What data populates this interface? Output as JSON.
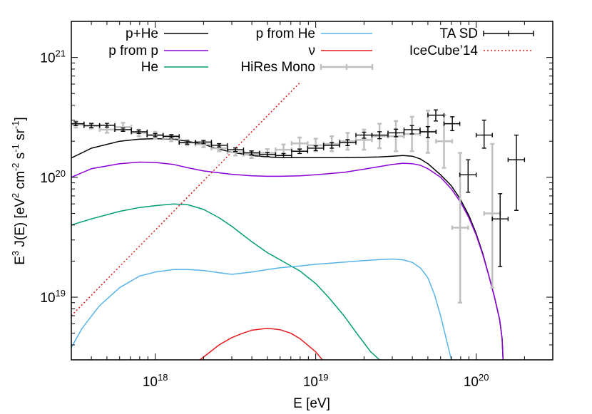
{
  "chart_data": {
    "type": "line",
    "xlabel": "E  [eV]",
    "ylabel": "E3 J(E)  [eV2 cm-2 s-1 sr-1]",
    "ylabel_parts": [
      "E",
      "3",
      " J(E)  [eV",
      "2",
      " cm",
      "-2",
      " s",
      "-1",
      " sr",
      "-1",
      "]"
    ],
    "x_scale": "log",
    "y_scale": "log",
    "xlim": [
      3e+17,
      3e+20
    ],
    "ylim": [
      3e+18,
      2e+21
    ],
    "x_ticks": [
      {
        "value": 1e+18,
        "base": "10",
        "exp": "18"
      },
      {
        "value": 1e+19,
        "base": "10",
        "exp": "19"
      },
      {
        "value": 1e+20,
        "base": "10",
        "exp": "20"
      }
    ],
    "y_ticks": [
      {
        "value": 1e+19,
        "base": "10",
        "exp": "19"
      },
      {
        "value": 1e+20,
        "base": "10",
        "exp": "20"
      },
      {
        "value": 1e+21,
        "base": "10",
        "exp": "21"
      }
    ],
    "grid": false,
    "legend_position": "top",
    "series": [
      {
        "name": "p+He",
        "color": "#000000",
        "style": "solid",
        "x": [
          3e+17,
          4e+17,
          6e+17,
          8e+17,
          1e+18,
          1.3e+18,
          1.6e+18,
          2e+18,
          2.5e+18,
          3e+18,
          4e+18,
          5e+18,
          6e+18,
          8e+18,
          1e+19,
          1.5e+19,
          2e+19,
          2.5e+19,
          3e+19,
          3.5e+19,
          4e+19,
          4.5e+19,
          5e+19,
          6e+19,
          7e+19,
          8e+19,
          9e+19,
          1e+20,
          1.1e+20,
          1.2e+20,
          1.3e+20,
          1.4e+20,
          1.45e+20,
          1.47e+20
        ],
        "y": [
          1.45e+20,
          1.75e+20,
          2e+20,
          2.08e+20,
          2.1e+20,
          2.08e+20,
          2e+20,
          1.88e+20,
          1.72e+20,
          1.62e+20,
          1.52e+20,
          1.48e+20,
          1.46e+20,
          1.46e+20,
          1.46e+20,
          1.46e+20,
          1.47e+20,
          1.48e+20,
          1.5e+20,
          1.52e+20,
          1.5e+20,
          1.42e+20,
          1.3e+20,
          1.05e+20,
          8.5e+19,
          6.5e+19,
          4.8e+19,
          3.4e+19,
          2.3e+19,
          1.5e+19,
          1e+19,
          6.5e+18,
          4.5e+18,
          3e+18
        ]
      },
      {
        "name": "p from p",
        "color": "#8b00d6",
        "style": "solid",
        "x": [
          3e+17,
          4e+17,
          6e+17,
          8e+17,
          1e+18,
          1.3e+18,
          1.6e+18,
          2e+18,
          3e+18,
          4e+18,
          5e+18,
          6e+18,
          8e+18,
          1e+19,
          1.5e+19,
          2e+19,
          2.5e+19,
          3e+19,
          3.5e+19,
          4e+19,
          4.5e+19,
          5e+19,
          6e+19,
          7e+19,
          8e+19,
          9e+19,
          1e+20,
          1.1e+20,
          1.2e+20,
          1.3e+20,
          1.4e+20,
          1.45e+20,
          1.47e+20
        ],
        "y": [
          1e+20,
          1.18e+20,
          1.3e+20,
          1.34e+20,
          1.33e+20,
          1.28e+20,
          1.2e+20,
          1.13e+20,
          1.06e+20,
          1.03e+20,
          1.02e+20,
          1.02e+20,
          1.03e+20,
          1.05e+20,
          1.1e+20,
          1.17e+20,
          1.23e+20,
          1.28e+20,
          1.31e+20,
          1.3e+20,
          1.26e+20,
          1.18e+20,
          1e+20,
          8e+19,
          6.2e+19,
          4.6e+19,
          3.3e+19,
          2.25e+19,
          1.5e+19,
          1e+19,
          6.5e+18,
          4.5e+18,
          3e+18
        ]
      },
      {
        "name": "He",
        "color": "#009e73",
        "style": "solid",
        "x": [
          3e+17,
          4e+17,
          6e+17,
          8e+17,
          1e+18,
          1.3e+18,
          1.6e+18,
          2e+18,
          2.5e+18,
          3e+18,
          4e+18,
          5e+18,
          6e+18,
          8e+18,
          1e+19,
          1.2e+19,
          1.5e+19,
          1.8e+19,
          2.2e+19,
          2.5e+19
        ],
        "y": [
          4e+19,
          4.5e+19,
          5.2e+19,
          5.6e+19,
          5.8e+19,
          6e+19,
          5.9e+19,
          5.4e+19,
          4.6e+19,
          3.9e+19,
          2.9e+19,
          2.35e+19,
          2.05e+19,
          1.65e+19,
          1.3e+19,
          1e+19,
          7e+18,
          5e+18,
          3.5e+18,
          3e+18
        ]
      },
      {
        "name": "p from He",
        "color": "#56b4e9",
        "style": "solid",
        "x": [
          3e+17,
          3.5e+17,
          4.5e+17,
          6e+17,
          8e+17,
          1e+18,
          1.3e+18,
          1.6e+18,
          2e+18,
          2.5e+18,
          3e+18,
          4e+18,
          5e+18,
          6e+18,
          8e+18,
          1e+19,
          1.5e+19,
          2e+19,
          2.5e+19,
          3e+19,
          3.5e+19,
          4e+19,
          4.5e+19,
          5e+19,
          5.5e+19,
          6e+19,
          6.5e+19,
          7e+19
        ],
        "y": [
          3.8e+18,
          5.5e+18,
          8.5e+18,
          1.2e+19,
          1.5e+19,
          1.62e+19,
          1.7e+19,
          1.7e+19,
          1.67e+19,
          1.6e+19,
          1.55e+19,
          1.62e+19,
          1.7e+19,
          1.76e+19,
          1.82e+19,
          1.88e+19,
          1.96e+19,
          2.02e+19,
          2.06e+19,
          2.08e+19,
          2.05e+19,
          1.95e+19,
          1.75e+19,
          1.45e+19,
          1.05e+19,
          7e+18,
          4.5e+18,
          3e+18
        ]
      },
      {
        "name": "ν",
        "color": "#e41a1c",
        "style": "solid",
        "x": [
          1.9e+18,
          2.5e+18,
          3e+18,
          3.5e+18,
          4e+18,
          5e+18,
          6e+18,
          7e+18,
          8e+18,
          1e+19,
          1.1e+19
        ],
        "y": [
          3e+18,
          4e+18,
          4.6e+18,
          5e+18,
          5.3e+18,
          5.5e+18,
          5.35e+18,
          5e+18,
          4.5e+18,
          3.5e+18,
          3e+18
        ]
      },
      {
        "name": "IceCube’14",
        "color": "#e41a1c",
        "style": "dotted",
        "x": [
          3e+17,
          8e+18
        ],
        "y": [
          7e+18,
          6.2e+20
        ]
      }
    ],
    "errorbar_series": [
      {
        "name": "HiRes Mono",
        "color": "#c0c0c0",
        "points": [
          {
            "x": 3.2e+17,
            "y": 2.75e+20,
            "lo": 2.6e+20,
            "hi": 2.95e+20,
            "xlo": 2.9e+17,
            "xhi": 3.6e+17
          },
          {
            "x": 4e+17,
            "y": 2.68e+20,
            "lo": 2.55e+20,
            "hi": 2.85e+20,
            "xlo": 3.6e+17,
            "xhi": 4.5e+17
          },
          {
            "x": 5e+17,
            "y": 2.5e+20,
            "lo": 2.35e+20,
            "hi": 2.7e+20,
            "xlo": 4.5e+17,
            "xhi": 5.6e+17
          },
          {
            "x": 6.3e+17,
            "y": 2.62e+20,
            "lo": 2.45e+20,
            "hi": 2.85e+20,
            "xlo": 5.6e+17,
            "xhi": 7.1e+17
          },
          {
            "x": 7.9e+17,
            "y": 2.35e+20,
            "lo": 2.2e+20,
            "hi": 2.5e+20,
            "xlo": 7.1e+17,
            "xhi": 8.9e+17
          },
          {
            "x": 1e+18,
            "y": 2.25e+20,
            "lo": 2.1e+20,
            "hi": 2.4e+20,
            "xlo": 8.9e+17,
            "xhi": 1.12e+18
          },
          {
            "x": 1.26e+18,
            "y": 2.12e+20,
            "lo": 2e+20,
            "hi": 2.25e+20,
            "xlo": 1.12e+18,
            "xhi": 1.41e+18
          },
          {
            "x": 1.58e+18,
            "y": 1.95e+20,
            "lo": 1.85e+20,
            "hi": 2.05e+20,
            "xlo": 1.41e+18,
            "xhi": 1.78e+18
          },
          {
            "x": 2e+18,
            "y": 1.88e+20,
            "lo": 1.78e+20,
            "hi": 1.98e+20,
            "xlo": 1.78e+18,
            "xhi": 2.24e+18
          },
          {
            "x": 2.5e+18,
            "y": 1.75e+20,
            "lo": 1.65e+20,
            "hi": 1.85e+20,
            "xlo": 2.24e+18,
            "xhi": 2.82e+18
          },
          {
            "x": 3.16e+18,
            "y": 1.62e+20,
            "lo": 1.52e+20,
            "hi": 1.72e+20,
            "xlo": 2.82e+18,
            "xhi": 3.55e+18
          },
          {
            "x": 3.98e+18,
            "y": 1.55e+20,
            "lo": 1.45e+20,
            "hi": 1.65e+20,
            "xlo": 3.55e+18,
            "xhi": 4.47e+18
          },
          {
            "x": 5e+18,
            "y": 1.6e+20,
            "lo": 1.48e+20,
            "hi": 1.72e+20,
            "xlo": 4.47e+18,
            "xhi": 5.62e+18
          },
          {
            "x": 6.3e+18,
            "y": 1.7e+20,
            "lo": 1.55e+20,
            "hi": 1.88e+20,
            "xlo": 5.62e+18,
            "xhi": 7.08e+18
          },
          {
            "x": 7.94e+18,
            "y": 1.92e+20,
            "lo": 1.72e+20,
            "hi": 2.15e+20,
            "xlo": 7.08e+18,
            "xhi": 8.91e+18
          },
          {
            "x": 1e+19,
            "y": 1.85e+20,
            "lo": 1.65e+20,
            "hi": 2.1e+20,
            "xlo": 8.91e+18,
            "xhi": 1.12e+19
          },
          {
            "x": 1.26e+19,
            "y": 1.9e+20,
            "lo": 1.65e+20,
            "hi": 2.2e+20,
            "xlo": 1.12e+19,
            "xhi": 1.41e+19
          },
          {
            "x": 1.58e+19,
            "y": 2e+20,
            "lo": 1.7e+20,
            "hi": 2.35e+20,
            "xlo": 1.41e+19,
            "xhi": 1.78e+19
          },
          {
            "x": 2e+19,
            "y": 2.05e+20,
            "lo": 1.7e+20,
            "hi": 2.5e+20,
            "xlo": 1.78e+19,
            "xhi": 2.24e+19
          },
          {
            "x": 2.5e+19,
            "y": 2.2e+20,
            "lo": 1.75e+20,
            "hi": 2.8e+20,
            "xlo": 2.24e+19,
            "xhi": 2.82e+19
          },
          {
            "x": 3.16e+19,
            "y": 2.2e+20,
            "lo": 1.65e+20,
            "hi": 2.95e+20,
            "xlo": 2.82e+19,
            "xhi": 3.55e+19
          },
          {
            "x": 3.98e+19,
            "y": 2.3e+20,
            "lo": 1.65e+20,
            "hi": 3.2e+20,
            "xlo": 3.55e+19,
            "xhi": 4.47e+19
          },
          {
            "x": 5e+19,
            "y": 2.4e+20,
            "lo": 1.6e+20,
            "hi": 3.6e+20,
            "xlo": 4.47e+19,
            "xhi": 5.62e+19
          },
          {
            "x": 6.3e+19,
            "y": 2e+20,
            "lo": 1.2e+20,
            "hi": 3.3e+20,
            "xlo": 5.62e+19,
            "xhi": 7.08e+19
          },
          {
            "x": 7.94e+19,
            "y": 3.8e+19,
            "lo": 9e+18,
            "hi": 1.6e+20,
            "xlo": 7.08e+19,
            "xhi": 8.91e+19
          },
          {
            "x": 1.26e+20,
            "y": 5e+19,
            "lo": 1.2e+19,
            "hi": 1.9e+20,
            "xlo": 1.12e+20,
            "xhi": 1.41e+20
          }
        ]
      },
      {
        "name": "TA SD",
        "color": "#000000",
        "points": [
          {
            "x": 3.2e+17,
            "y": 2.8e+20,
            "lo": 2.7e+20,
            "hi": 2.9e+20,
            "xlo": 2.9e+17,
            "xhi": 3.6e+17
          },
          {
            "x": 4e+17,
            "y": 2.7e+20,
            "lo": 2.6e+20,
            "hi": 2.8e+20,
            "xlo": 3.6e+17,
            "xhi": 4.5e+17
          },
          {
            "x": 5e+17,
            "y": 2.72e+20,
            "lo": 2.62e+20,
            "hi": 2.82e+20,
            "xlo": 4.5e+17,
            "xhi": 5.6e+17
          },
          {
            "x": 6.3e+17,
            "y": 2.5e+20,
            "lo": 2.42e+20,
            "hi": 2.58e+20,
            "xlo": 5.6e+17,
            "xhi": 7.1e+17
          },
          {
            "x": 7.9e+17,
            "y": 2.4e+20,
            "lo": 2.32e+20,
            "hi": 2.48e+20,
            "xlo": 7.1e+17,
            "xhi": 8.9e+17
          },
          {
            "x": 1e+18,
            "y": 2.25e+20,
            "lo": 2.18e+20,
            "hi": 2.32e+20,
            "xlo": 8.9e+17,
            "xhi": 1.12e+18
          },
          {
            "x": 1.26e+18,
            "y": 2.2e+20,
            "lo": 2.13e+20,
            "hi": 2.27e+20,
            "xlo": 1.12e+18,
            "xhi": 1.41e+18
          },
          {
            "x": 1.58e+18,
            "y": 1.95e+20,
            "lo": 1.89e+20,
            "hi": 2.01e+20,
            "xlo": 1.41e+18,
            "xhi": 1.78e+18
          },
          {
            "x": 2e+18,
            "y": 1.97e+20,
            "lo": 1.91e+20,
            "hi": 2.03e+20,
            "xlo": 1.78e+18,
            "xhi": 2.24e+18
          },
          {
            "x": 2.5e+18,
            "y": 1.85e+20,
            "lo": 1.79e+20,
            "hi": 1.91e+20,
            "xlo": 2.24e+18,
            "xhi": 2.82e+18
          },
          {
            "x": 3.16e+18,
            "y": 1.7e+20,
            "lo": 1.64e+20,
            "hi": 1.76e+20,
            "xlo": 2.82e+18,
            "xhi": 3.55e+18
          },
          {
            "x": 3.98e+18,
            "y": 1.6e+20,
            "lo": 1.54e+20,
            "hi": 1.66e+20,
            "xlo": 3.55e+18,
            "xhi": 4.47e+18
          },
          {
            "x": 5e+18,
            "y": 1.55e+20,
            "lo": 1.49e+20,
            "hi": 1.61e+20,
            "xlo": 4.47e+18,
            "xhi": 5.62e+18
          },
          {
            "x": 6.3e+18,
            "y": 1.52e+20,
            "lo": 1.46e+20,
            "hi": 1.58e+20,
            "xlo": 5.62e+18,
            "xhi": 7.08e+18
          },
          {
            "x": 7.94e+18,
            "y": 1.65e+20,
            "lo": 1.58e+20,
            "hi": 1.72e+20,
            "xlo": 7.08e+18,
            "xhi": 8.91e+18
          },
          {
            "x": 1e+19,
            "y": 1.75e+20,
            "lo": 1.67e+20,
            "hi": 1.83e+20,
            "xlo": 8.91e+18,
            "xhi": 1.12e+19
          },
          {
            "x": 1.26e+19,
            "y": 1.85e+20,
            "lo": 1.75e+20,
            "hi": 1.95e+20,
            "xlo": 1.12e+19,
            "xhi": 1.41e+19
          },
          {
            "x": 1.58e+19,
            "y": 1.95e+20,
            "lo": 1.84e+20,
            "hi": 2.06e+20,
            "xlo": 1.41e+19,
            "xhi": 1.78e+19
          },
          {
            "x": 2e+19,
            "y": 2.25e+20,
            "lo": 2.12e+20,
            "hi": 2.38e+20,
            "xlo": 1.78e+19,
            "xhi": 2.24e+19
          },
          {
            "x": 2.5e+19,
            "y": 2.25e+20,
            "lo": 2.1e+20,
            "hi": 2.4e+20,
            "xlo": 2.24e+19,
            "xhi": 2.82e+19
          },
          {
            "x": 3.16e+19,
            "y": 2.35e+20,
            "lo": 2.18e+20,
            "hi": 2.52e+20,
            "xlo": 2.82e+19,
            "xhi": 3.55e+19
          },
          {
            "x": 3.98e+19,
            "y": 2.5e+20,
            "lo": 2.3e+20,
            "hi": 2.7e+20,
            "xlo": 3.55e+19,
            "xhi": 4.47e+19
          },
          {
            "x": 5e+19,
            "y": 2.4e+20,
            "lo": 2.15e+20,
            "hi": 2.65e+20,
            "xlo": 4.47e+19,
            "xhi": 5.62e+19
          },
          {
            "x": 5.6e+19,
            "y": 3.3e+20,
            "lo": 2.95e+20,
            "hi": 3.65e+20,
            "xlo": 5e+19,
            "xhi": 6.3e+19
          },
          {
            "x": 7.1e+19,
            "y": 2.8e+20,
            "lo": 2.45e+20,
            "hi": 3.2e+20,
            "xlo": 6.3e+19,
            "xhi": 7.9e+19
          },
          {
            "x": 8.9e+19,
            "y": 1.05e+20,
            "lo": 7.5e+19,
            "hi": 1.4e+20,
            "xlo": 7.9e+19,
            "xhi": 1e+20
          },
          {
            "x": 1.12e+20,
            "y": 2.25e+20,
            "lo": 1.75e+20,
            "hi": 3e+20,
            "xlo": 1e+20,
            "xhi": 1.26e+20
          },
          {
            "x": 1.41e+20,
            "y": 4.5e+19,
            "lo": 1.8e+19,
            "hi": 7.3e+19,
            "xlo": 1.26e+20,
            "xhi": 1.58e+20
          },
          {
            "x": 1.78e+20,
            "y": 1.4e+20,
            "lo": 5.3e+19,
            "hi": 2.25e+20,
            "xlo": 1.58e+20,
            "xhi": 2e+20
          }
        ]
      }
    ],
    "legend": [
      {
        "label": "p+He",
        "color": "#000000",
        "style": "solid",
        "col": 0,
        "row": 0
      },
      {
        "label": "p from p",
        "color": "#8b00d6",
        "style": "solid",
        "col": 0,
        "row": 1
      },
      {
        "label": "He",
        "color": "#009e73",
        "style": "solid",
        "col": 0,
        "row": 2
      },
      {
        "label": "p from He",
        "color": "#56b4e9",
        "style": "solid",
        "col": 1,
        "row": 0
      },
      {
        "label": "ν",
        "color": "#e41a1c",
        "style": "solid",
        "col": 1,
        "row": 1
      },
      {
        "label": "HiRes Mono",
        "color": "#c0c0c0",
        "style": "errorbar",
        "col": 1,
        "row": 2
      },
      {
        "label": "TA SD",
        "color": "#000000",
        "style": "errorbar",
        "col": 2,
        "row": 0
      },
      {
        "label": "IceCube’14",
        "color": "#e41a1c",
        "style": "dotted",
        "col": 2,
        "row": 1
      }
    ]
  }
}
